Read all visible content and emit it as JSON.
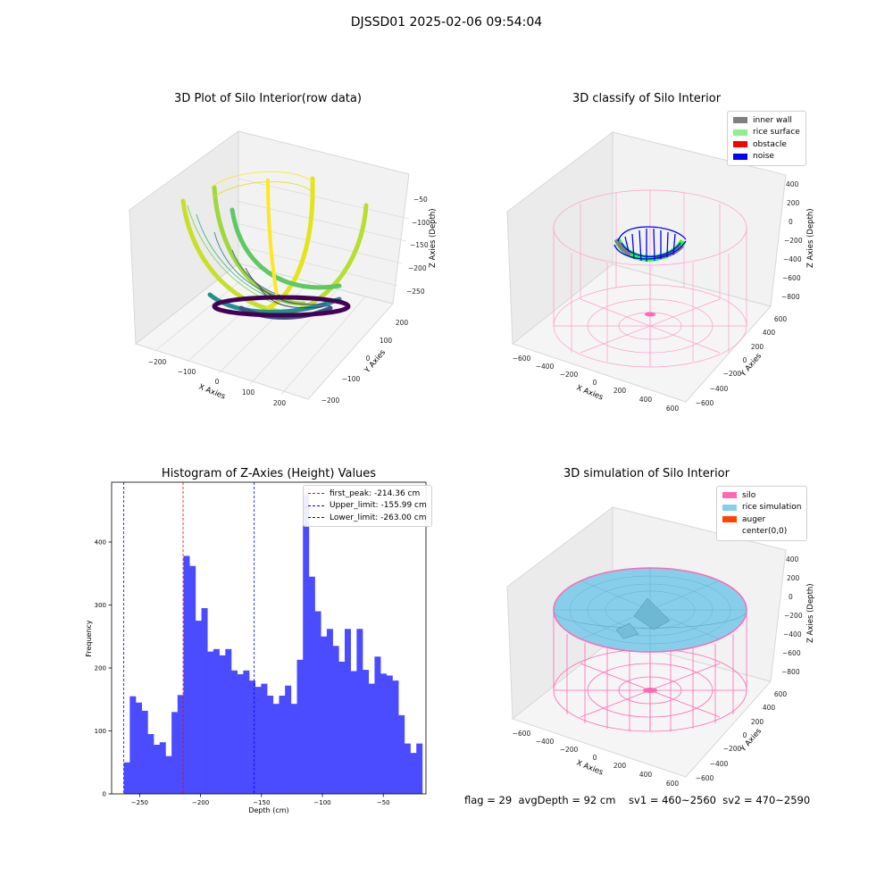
{
  "suptitle": "DJSSD01 2025-02-06 09:54:04",
  "status_text": "flag = 29  avgDepth = 92 cm    sv1 = 460~2560  sv2 = 470~2590",
  "chart_data": [
    {
      "type": "scatter",
      "title": "3D Plot of Silo Interior(row data)",
      "xlabel": "X Axies",
      "ylabel": "Y Axies",
      "zlabel": "Z Axies (Depth)",
      "x_ticks": [
        "−200",
        "−100",
        "0",
        "100",
        "200"
      ],
      "y_ticks": [
        "−200",
        "−100",
        "0",
        "100",
        "200"
      ],
      "z_ticks": [
        "−50",
        "−100",
        "−150",
        "−200",
        "−250"
      ],
      "colormap": "viridis"
    },
    {
      "type": "scatter",
      "title": "3D classify of Silo Interior",
      "xlabel": "X Axies",
      "ylabel": "Y Axies",
      "zlabel": "Z Axies (Depth)",
      "x_ticks": [
        "−600",
        "−400",
        "−200",
        "0",
        "200",
        "400",
        "600"
      ],
      "y_ticks": [
        "−600",
        "−400",
        "−200",
        "0",
        "200",
        "400",
        "600"
      ],
      "z_ticks": [
        "400",
        "200",
        "0",
        "−200",
        "−400",
        "−600",
        "−800"
      ],
      "legend": [
        {
          "label": "inner wall",
          "color": "#808080"
        },
        {
          "label": "rice surface",
          "color": "#90ee90"
        },
        {
          "label": "obstacle",
          "color": "#ff0000"
        },
        {
          "label": "noise",
          "color": "#0000ff"
        }
      ]
    },
    {
      "type": "bar",
      "title": "Histogram of Z-Axies (Height) Values",
      "xlabel": "Depth (cm)",
      "ylabel": "Frequency",
      "xlim": [
        -273,
        -15
      ],
      "ylim": [
        0,
        495
      ],
      "bin_start": -263.0,
      "bin_width": 4.9,
      "values": [
        50,
        155,
        145,
        132,
        95,
        78,
        82,
        60,
        130,
        157,
        378,
        362,
        275,
        295,
        226,
        230,
        220,
        230,
        196,
        190,
        196,
        180,
        170,
        175,
        156,
        143,
        156,
        172,
        143,
        213,
        475,
        345,
        290,
        250,
        262,
        235,
        210,
        262,
        195,
        262,
        197,
        175,
        218,
        191,
        188,
        180,
        125,
        80,
        65,
        80
      ],
      "x_ticks": [
        -250,
        -200,
        -150,
        -100,
        -50
      ],
      "x_tick_labels": [
        "−250",
        "−200",
        "−150",
        "−100",
        "−50"
      ],
      "y_ticks": [
        0,
        100,
        200,
        300,
        400
      ],
      "y_tick_labels": [
        "0",
        "100",
        "200",
        "300",
        "400"
      ],
      "bar_color": "#4b4bff",
      "vlines": [
        {
          "x": -214.36,
          "color": "#ff0000",
          "label": "first_peak: -214.36 cm"
        },
        {
          "x": -155.99,
          "color": "#0000ff",
          "label": "Upper_limit: -155.99 cm"
        },
        {
          "x": -263.0,
          "color": "#0000ff",
          "label": "Lower_limit: -263.00 cm"
        }
      ]
    },
    {
      "type": "area",
      "title": "3D simulation of Silo Interior",
      "xlabel": "X Axies",
      "ylabel": "Y Axies",
      "zlabel": "Z Axies (Depth)",
      "x_ticks": [
        "−600",
        "−400",
        "−200",
        "0",
        "200",
        "400",
        "600"
      ],
      "y_ticks": [
        "−600",
        "−400",
        "−200",
        "0",
        "200",
        "400",
        "600"
      ],
      "z_ticks": [
        "400",
        "200",
        "0",
        "−200",
        "−400",
        "−600",
        "−800"
      ],
      "legend": [
        {
          "label": "silo",
          "color": "#ff69b4"
        },
        {
          "label": "rice simulation",
          "color": "#87ceeb"
        },
        {
          "label": "auger",
          "color": "#ff4500"
        },
        {
          "label": "center(0,0)",
          "color": "#ffffff"
        }
      ]
    }
  ]
}
